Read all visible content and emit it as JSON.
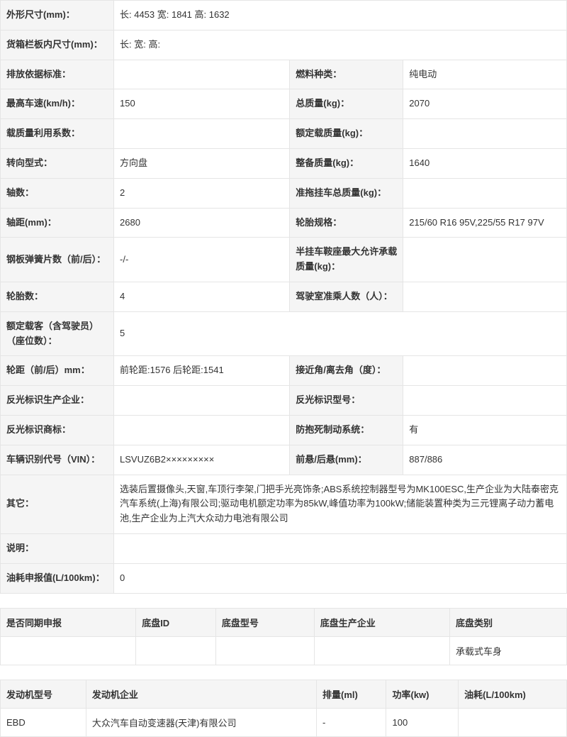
{
  "specs": {
    "dimensions_label": "外形尺寸(mm)：",
    "dimensions_value": "长: 4453 宽: 1841 高: 1632",
    "cargo_label": "货箱栏板内尺寸(mm)：",
    "cargo_value": "长: 宽: 高:",
    "emission_label": "排放依据标准：",
    "emission_value": "",
    "fuel_label": "燃料种类：",
    "fuel_value": "纯电动",
    "maxspeed_label": "最高车速(km/h)：",
    "maxspeed_value": "150",
    "totalmass_label": "总质量(kg)：",
    "totalmass_value": "2070",
    "loadfactor_label": "载质量利用系数：",
    "loadfactor_value": "",
    "ratedload_label": "额定载质量(kg)：",
    "ratedload_value": "",
    "steering_label": "转向型式：",
    "steering_value": "方向盘",
    "curbmass_label": "整备质量(kg)：",
    "curbmass_value": "1640",
    "axles_label": "轴数：",
    "axles_value": "2",
    "trailermass_label": "准拖挂车总质量(kg)：",
    "trailermass_value": "",
    "wheelbase_label": "轴距(mm)：",
    "wheelbase_value": "2680",
    "tires_label": "轮胎规格：",
    "tires_value": "215/60 R16 95V,225/55 R17 97V",
    "leafspring_label": "钢板弹簧片数（前/后）：",
    "leafspring_value": "-/-",
    "saddleload_label": "半挂车鞍座最大允许承载质量(kg)：",
    "saddleload_value": "",
    "tirecount_label": "轮胎数：",
    "tirecount_value": "4",
    "cabpassenger_label": "驾驶室准乘人数（人）：",
    "cabpassenger_value": "",
    "seats_label": "额定载客（含驾驶员）（座位数）：",
    "seats_value": "5",
    "track_label": "轮距（前/后）mm：",
    "track_value": "前轮距:1576 后轮距:1541",
    "angle_label": "接近角/离去角（度）：",
    "angle_value": "",
    "reflectmfr_label": "反光标识生产企业：",
    "reflectmfr_value": "",
    "reflectmodel_label": "反光标识型号：",
    "reflectmodel_value": "",
    "reflectmark_label": "反光标识商标：",
    "reflectmark_value": "",
    "abs_label": "防抱死制动系统：",
    "abs_value": "有",
    "vin_label": "车辆识别代号（VIN）：",
    "vin_value": "LSVUZ6B2×××××××××",
    "overhang_label": "前悬/后悬(mm)：",
    "overhang_value": "887/886",
    "other_label": "其它：",
    "other_value": "选装后置摄像头,天窗,车顶行李架,门把手光亮饰条;ABS系统控制器型号为MK100ESC,生产企业为大陆泰密克汽车系统(上海)有限公司;驱动电机额定功率为85kW,峰值功率为100kW;储能装置种类为三元锂离子动力蓄电池,生产企业为上汽大众动力电池有限公司",
    "note_label": "说明：",
    "note_value": "",
    "fuelcons_label": "油耗申报值(L/100km)：",
    "fuelcons_value": "0"
  },
  "chassis": {
    "col1": "是否同期申报",
    "col2": "底盘ID",
    "col3": "底盘型号",
    "col4": "底盘生产企业",
    "col5": "底盘类别",
    "row": {
      "c1": "",
      "c2": "",
      "c3": "",
      "c4": "",
      "c5": "承载式车身"
    }
  },
  "engine": {
    "col1": "发动机型号",
    "col2": "发动机企业",
    "col3": "排量(ml)",
    "col4": "功率(kw)",
    "col5": "油耗(L/100km)",
    "row": {
      "c1": "EBD",
      "c2": "大众汽车自动变速器(天津)有限公司",
      "c3": "-",
      "c4": "100",
      "c5": ""
    }
  }
}
